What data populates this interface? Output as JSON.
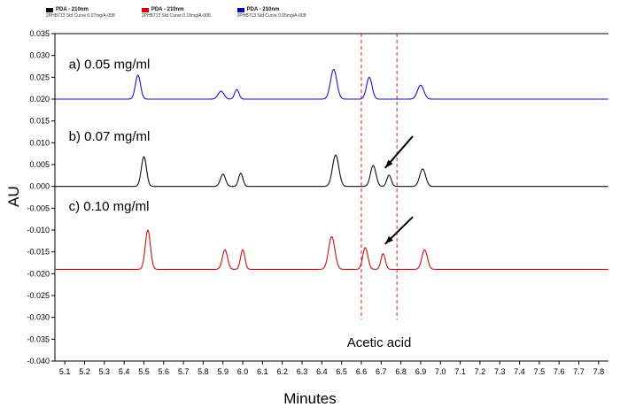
{
  "legend": {
    "items": [
      {
        "color": "#111111",
        "line1": "PDA - 210nm",
        "line2": "2PHB713 Std Curve 0.07mg/A-008"
      },
      {
        "color": "#cc0000",
        "line1": "PDA - 210nm",
        "line2": "2PHB713 Std Curve 0.10mg/A-008"
      },
      {
        "color": "#0000bb",
        "line1": "PDA - 210nm",
        "line2": "2PHB713 Std Curve 0.05mg/A-008"
      }
    ]
  },
  "chart_data": {
    "type": "line",
    "title": "",
    "xlabel": "Minutes",
    "ylabel": "AU",
    "xlim": [
      5.05,
      7.85
    ],
    "ylim": [
      -0.04,
      0.035
    ],
    "xticks": {
      "start": 5.1,
      "end": 7.8,
      "step": 0.1
    },
    "yticks": {
      "start": -0.04,
      "end": 0.035,
      "step": 0.005
    },
    "grid": false,
    "legend_position": "top-left",
    "marker_lines": {
      "color": "#cc2222",
      "dash": "4 3",
      "x_values": [
        6.6,
        6.78
      ],
      "y_top": 0.035,
      "y_bottom": -0.0305
    },
    "series": [
      {
        "name": "a) 0.05 mg/ml",
        "color": "#1515cc",
        "baseline": 0.02,
        "peaks": [
          [
            5.47,
            0.0055,
            0.013
          ],
          [
            5.89,
            0.0018,
            0.015
          ],
          [
            5.97,
            0.0022,
            0.011
          ],
          [
            6.46,
            0.0068,
            0.016
          ],
          [
            6.64,
            0.005,
            0.014
          ],
          [
            6.9,
            0.0032,
            0.016
          ]
        ]
      },
      {
        "name": "b) 0.07 mg/ml",
        "color": "#111111",
        "baseline": 0.0,
        "peaks": [
          [
            5.5,
            0.0068,
            0.013
          ],
          [
            5.9,
            0.0028,
            0.013
          ],
          [
            5.99,
            0.003,
            0.011
          ],
          [
            6.47,
            0.0072,
            0.016
          ],
          [
            6.66,
            0.0048,
            0.014
          ],
          [
            6.74,
            0.0026,
            0.011
          ],
          [
            6.91,
            0.004,
            0.015
          ]
        ]
      },
      {
        "name": "c) 0.10 mg/ml",
        "color": "#cc1111",
        "baseline": -0.019,
        "peaks": [
          [
            5.52,
            0.009,
            0.013
          ],
          [
            5.91,
            0.0045,
            0.013
          ],
          [
            6.0,
            0.0045,
            0.011
          ],
          [
            6.45,
            0.0075,
            0.016
          ],
          [
            6.62,
            0.005,
            0.013
          ],
          [
            6.71,
            0.0036,
            0.011
          ],
          [
            6.92,
            0.0045,
            0.014
          ]
        ]
      }
    ],
    "annotations": [
      {
        "text": "a) 0.05 mg/ml",
        "x": 5.12,
        "y": 0.027,
        "size": 15,
        "anchor": "start"
      },
      {
        "text": "b) 0.07 mg/ml",
        "x": 5.12,
        "y": 0.0105,
        "size": 15,
        "anchor": "start"
      },
      {
        "text": "c) 0.10 mg/ml",
        "x": 5.12,
        "y": -0.0055,
        "size": 15,
        "anchor": "start"
      },
      {
        "text": "Acetic acid",
        "x": 6.69,
        "y": -0.0368,
        "size": 15,
        "anchor": "middle"
      }
    ],
    "arrows": [
      {
        "from": [
          6.86,
          0.0115
        ],
        "to": [
          6.72,
          0.0042
        ]
      },
      {
        "from": [
          6.86,
          -0.007
        ],
        "to": [
          6.72,
          -0.0132
        ]
      }
    ]
  }
}
